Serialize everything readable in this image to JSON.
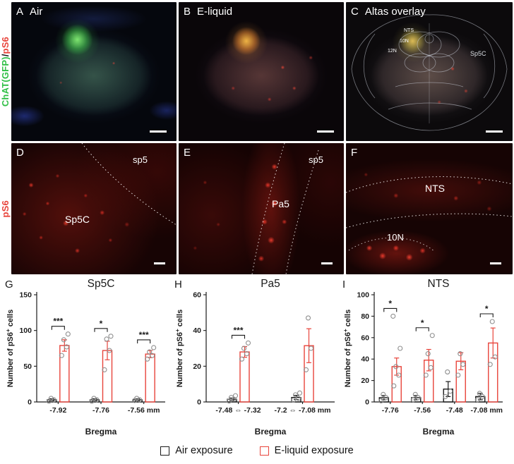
{
  "colors": {
    "green": "#2fbf45",
    "red": "#e8443b",
    "black": "#1a1a1a"
  },
  "row_labels": {
    "top_green": "ChAT(GFP)",
    "top_sep": "/",
    "top_red": "pS6",
    "mid_red": "pS6"
  },
  "panels": {
    "a": {
      "letter": "A",
      "title": "Air"
    },
    "b": {
      "letter": "B",
      "title": "E-liquid"
    },
    "c": {
      "letter": "C",
      "title": "Altas overlay",
      "atlas_labels": {
        "nts": "NTS",
        "n10": "10N",
        "n12": "12N",
        "sp5c": "Sp5C"
      }
    },
    "d": {
      "letter": "D",
      "region_labels": {
        "sp5": "sp5",
        "sp5c": "Sp5C"
      }
    },
    "e": {
      "letter": "E",
      "region_labels": {
        "sp5": "sp5",
        "pa5": "Pa5"
      }
    },
    "f": {
      "letter": "F",
      "region_labels": {
        "nts": "NTS",
        "n10": "10N"
      }
    }
  },
  "legend": {
    "air_label": "Air exposure",
    "eliquid_label": "E-liquid exposure",
    "air_color": "#1a1a1a",
    "eliquid_color": "#e8443b"
  },
  "chart_data": [
    {
      "type": "bar",
      "panel_letter": "G",
      "title": "Sp5C",
      "ylabel": {
        "pre": "Number of pS6",
        "sup": "+",
        "post": " cells"
      },
      "xlabel": "Bregma",
      "ylim": [
        0,
        150
      ],
      "yticks": [
        0,
        50,
        100,
        150
      ],
      "categories": [
        "-7.92",
        "-7.76",
        "-7.56 mm"
      ],
      "series": [
        {
          "name": "Air exposure",
          "color": "#1a1a1a",
          "values": [
            3,
            3,
            3
          ],
          "err": [
            1.5,
            1.5,
            1.5
          ],
          "points": [
            [
              1,
              3,
              5
            ],
            [
              1,
              3,
              5
            ],
            [
              2,
              3,
              5
            ]
          ]
        },
        {
          "name": "E-liquid exposure",
          "color": "#e8443b",
          "values": [
            79,
            72,
            67
          ],
          "err": [
            8,
            13,
            5
          ],
          "points": [
            [
              65,
              77,
              87,
              95
            ],
            [
              45,
              72,
              88,
              92
            ],
            [
              60,
              65,
              70,
              76
            ]
          ]
        }
      ],
      "significance": [
        {
          "group": 0,
          "label": "***"
        },
        {
          "group": 1,
          "label": "*"
        },
        {
          "group": 2,
          "label": "***"
        }
      ]
    },
    {
      "type": "bar",
      "panel_letter": "H",
      "title": "Pa5",
      "ylabel": {
        "pre": "Number of pS6",
        "sup": "+",
        "post": " cells"
      },
      "xlabel": "Bregma",
      "ylim": [
        0,
        60
      ],
      "yticks": [
        0,
        20,
        40,
        60
      ],
      "categories": [
        "-7.48 ⇔ -7.32",
        "-7.2 ⇔ -7.08 mm"
      ],
      "series": [
        {
          "name": "Air exposure",
          "color": "#1a1a1a",
          "values": [
            1.5,
            2.5
          ],
          "err": [
            0.7,
            1.2
          ],
          "points": [
            [
              0.5,
              1.5,
              2.5,
              3.5
            ],
            [
              1,
              2,
              4,
              5
            ]
          ]
        },
        {
          "name": "E-liquid exposure",
          "color": "#e8443b",
          "values": [
            28,
            31.5
          ],
          "err": [
            3,
            9.5
          ],
          "points": [
            [
              24,
              27,
              30,
              33
            ],
            [
              18,
              30,
              47
            ]
          ]
        }
      ],
      "significance": [
        {
          "group": 0,
          "label": "***"
        }
      ]
    },
    {
      "type": "bar",
      "panel_letter": "I",
      "title": "NTS",
      "ylabel": {
        "pre": "Number of pS6",
        "sup": "+",
        "post": " cells"
      },
      "xlabel": "Bregma",
      "ylim": [
        0,
        100
      ],
      "yticks": [
        0,
        20,
        40,
        60,
        80,
        100
      ],
      "categories": [
        "-7.76",
        "-7.56",
        "-7.48",
        "-7.08 mm"
      ],
      "series": [
        {
          "name": "Air exposure",
          "color": "#1a1a1a",
          "values": [
            4,
            4,
            12,
            5
          ],
          "err": [
            2,
            2,
            7,
            3
          ],
          "points": [
            [
              1,
              4,
              7
            ],
            [
              2,
              4,
              7
            ],
            [
              5,
              10,
              28
            ],
            [
              2,
              5,
              8
            ]
          ]
        },
        {
          "name": "E-liquid exposure",
          "color": "#e8443b",
          "values": [
            33,
            39,
            38,
            55
          ],
          "err": [
            8,
            10,
            8,
            14
          ],
          "points": [
            [
              15,
              25,
              33,
              50,
              80
            ],
            [
              25,
              32,
              45,
              62
            ],
            [
              25,
              35,
              45
            ],
            [
              35,
              42,
              75
            ]
          ]
        }
      ],
      "significance": [
        {
          "group": 0,
          "label": "*"
        },
        {
          "group": 1,
          "label": "*"
        },
        {
          "group": 3,
          "label": "*"
        }
      ]
    }
  ]
}
